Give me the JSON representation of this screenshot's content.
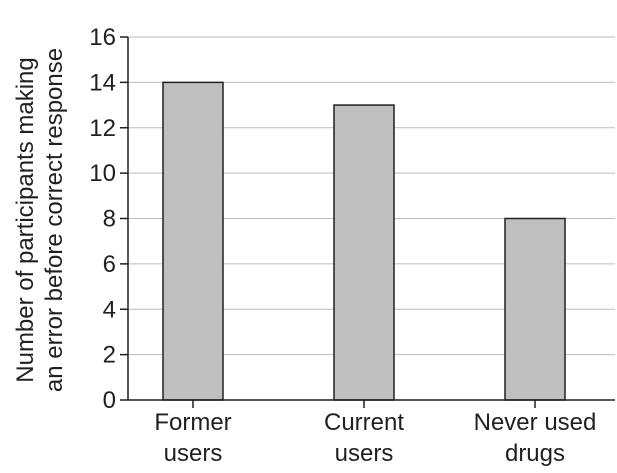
{
  "chart_data": {
    "type": "bar",
    "categories": [
      [
        "Former",
        "users"
      ],
      [
        "Current",
        "users"
      ],
      [
        "Never used",
        "drugs"
      ]
    ],
    "values": [
      14,
      13,
      8
    ],
    "ylabel": [
      "Number of participants making",
      "an error before correct response"
    ],
    "xlabel": "",
    "ylim": [
      0,
      16
    ],
    "yticks": [
      "0",
      "2",
      "4",
      "6",
      "8",
      "10",
      "12",
      "14",
      "16"
    ],
    "grid": true,
    "legend": "none",
    "bar_color": "#bfbfbf",
    "text_color": "#231f20"
  }
}
